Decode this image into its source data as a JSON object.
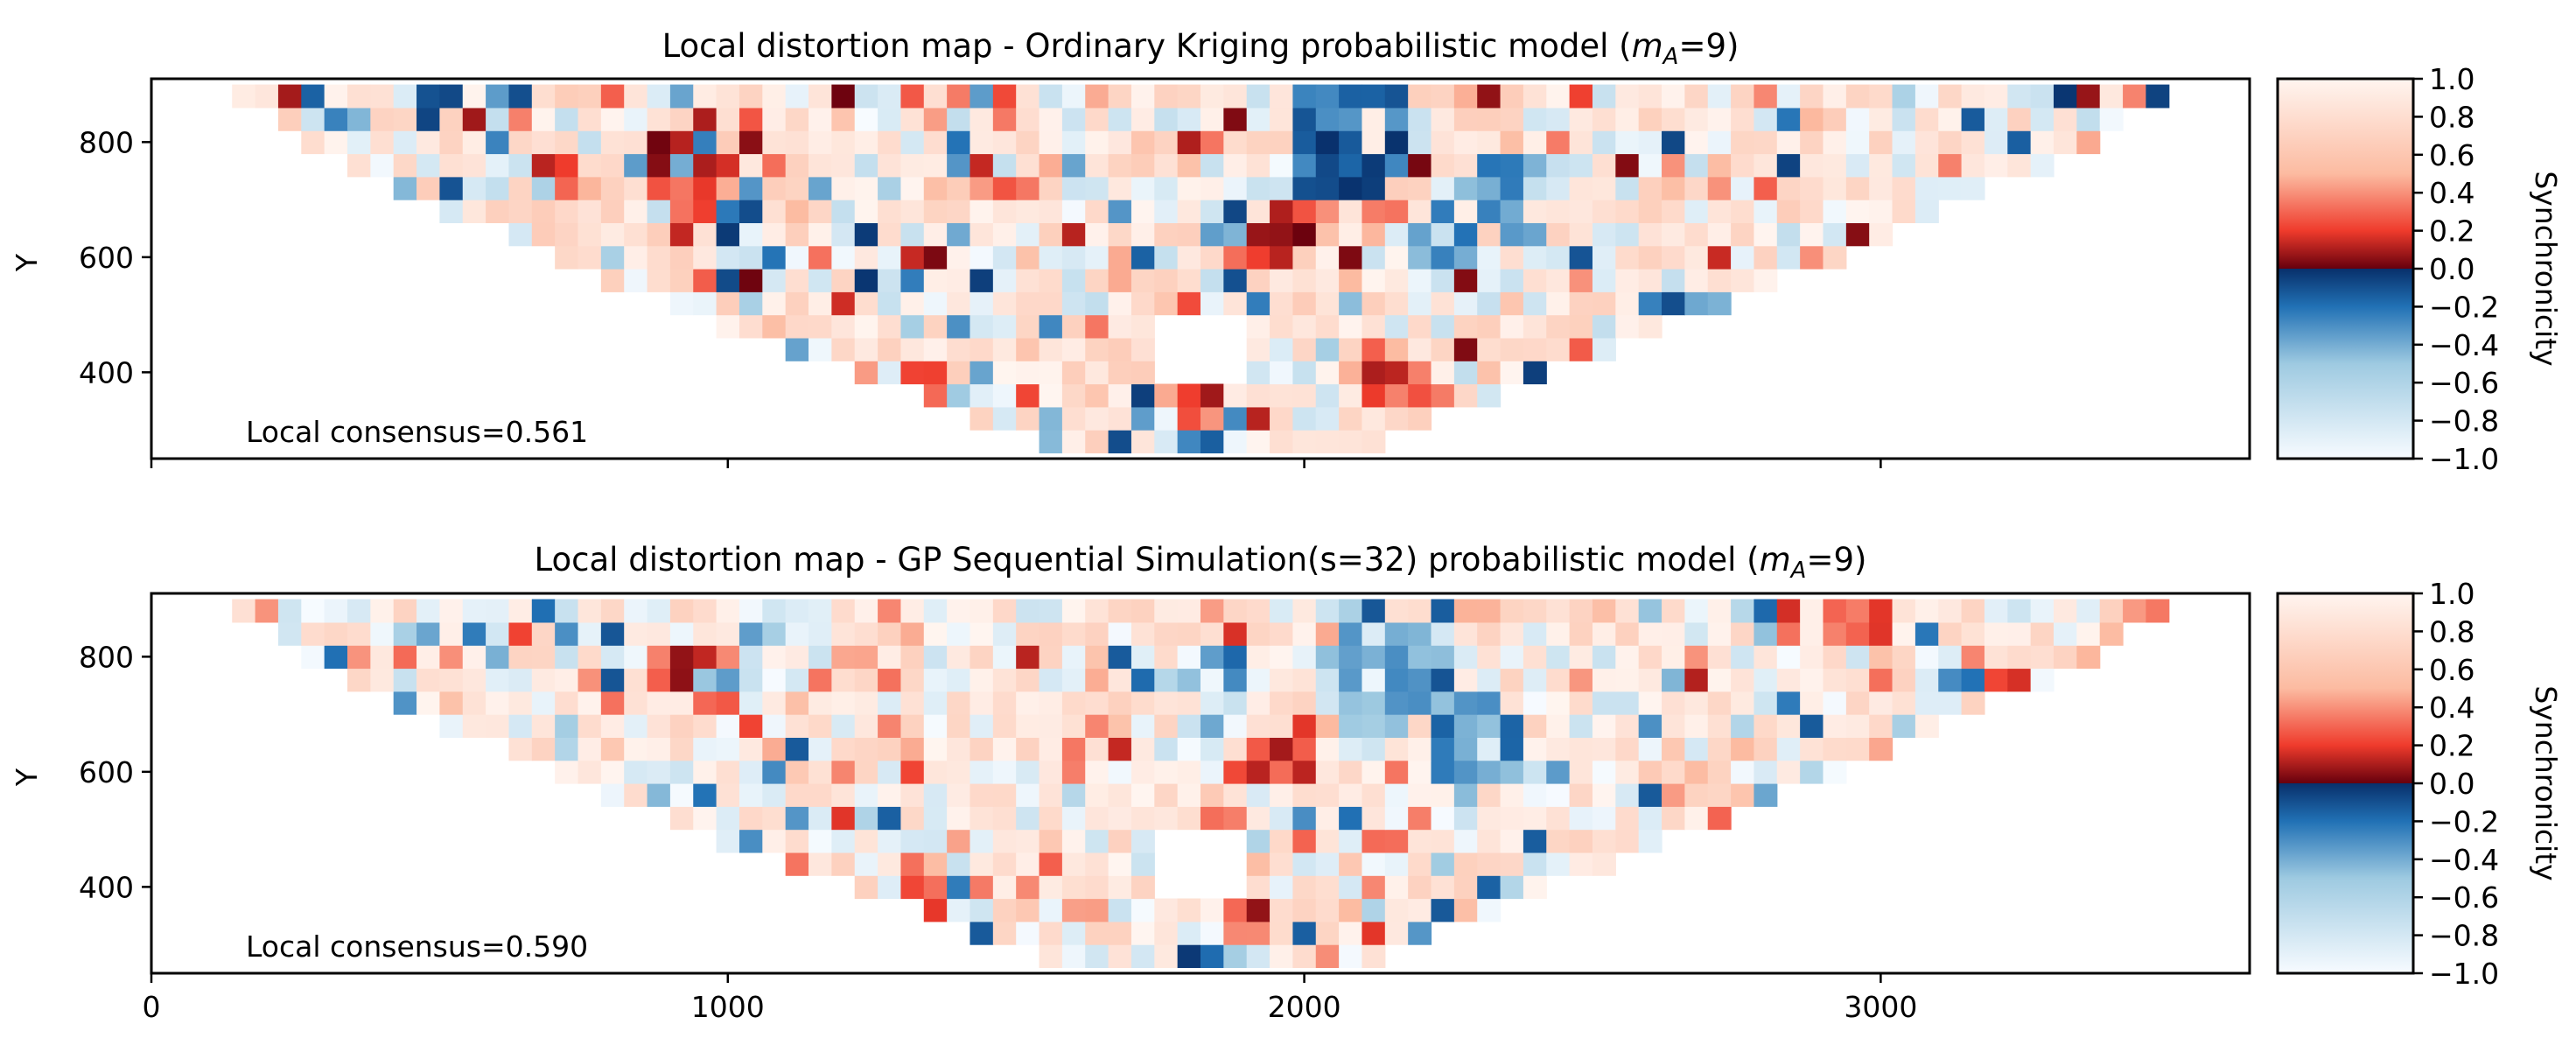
{
  "colors": {
    "colormap": "RdBu_r-like diverging (reversed: +1 pale, ~0 dark red/dark blue, -1 pale blue)",
    "frame": "#000000",
    "background": "#ffffff"
  },
  "chart_data": [
    {
      "type": "heatmap",
      "title_parts": {
        "prefix": "Local distortion map - Ordinary Kriging probabilistic model (",
        "m": "m",
        "sub": "A",
        "suffix": "=9)"
      },
      "ylabel": "Y",
      "xlabel": "",
      "xlim": [
        0,
        3640
      ],
      "ylim": [
        250,
        910
      ],
      "xticks": [
        "0",
        "1000",
        "2000",
        "3000"
      ],
      "yticks": [
        "400",
        "600",
        "800"
      ],
      "x_tick_labels_shown": false,
      "annotation": "Local consensus=0.561",
      "colorbar": {
        "label": "Synchronicity",
        "range": [
          -1.0,
          1.0
        ],
        "ticks": [
          "1.0",
          "0.8",
          "0.6",
          "0.4",
          "0.2",
          "0.0",
          "−0.2",
          "−0.4",
          "−0.6",
          "−0.8",
          "−1.0"
        ]
      },
      "grid": false,
      "cell_size": 40,
      "domain_note": "cells within an inverted-trapezoid region; empty gap near x≈1850, y≈400-480",
      "seed": 7
    },
    {
      "type": "heatmap",
      "title_parts": {
        "prefix": "Local distortion map - GP Sequential Simulation(s=32) probabilistic model (",
        "m": "m",
        "sub": "A",
        "suffix": "=9)"
      },
      "ylabel": "Y",
      "xlabel": "",
      "xlim": [
        0,
        3640
      ],
      "ylim": [
        250,
        910
      ],
      "xticks": [
        "0",
        "1000",
        "2000",
        "3000"
      ],
      "yticks": [
        "400",
        "600",
        "800"
      ],
      "x_tick_labels_shown": true,
      "annotation": "Local consensus=0.590",
      "colorbar": {
        "label": "Synchronicity",
        "range": [
          -1.0,
          1.0
        ],
        "ticks": [
          "1.0",
          "0.8",
          "0.6",
          "0.4",
          "0.2",
          "0.0",
          "−0.2",
          "−0.4",
          "−0.6",
          "−0.8",
          "−1.0"
        ]
      },
      "grid": false,
      "cell_size": 40,
      "domain_note": "same domain, slightly smoother/lighter field",
      "seed": 23
    }
  ]
}
